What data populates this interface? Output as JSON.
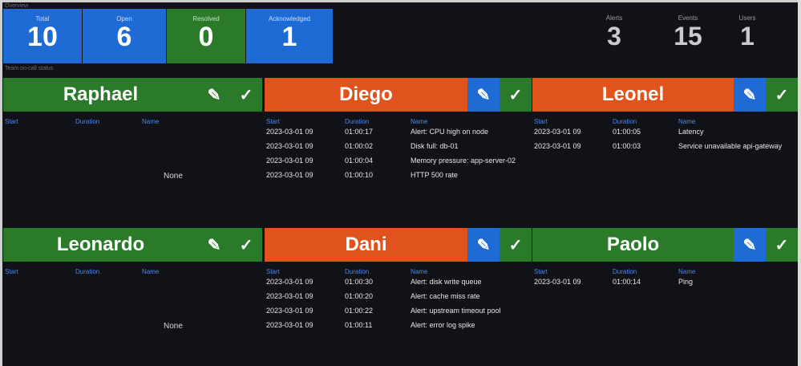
{
  "top": {
    "section_label": "Overview",
    "row_label": "Team on-call status",
    "stats": [
      {
        "label": "Total",
        "value": "10",
        "color": "#1f6bd6"
      },
      {
        "label": "Open",
        "value": "6",
        "color": "#1f6bd6"
      },
      {
        "label": "Resolved",
        "value": "0",
        "color": "#2a7a2a"
      },
      {
        "label": "Acknowledged",
        "value": "1",
        "color": "#1f6bd6"
      }
    ],
    "metrics": [
      {
        "label": "Alerts",
        "value": "3"
      },
      {
        "label": "Events",
        "value": "15"
      },
      {
        "label": "Users",
        "value": "1"
      }
    ]
  },
  "columns": [
    "Start",
    "Duration",
    "Name"
  ],
  "empty_label": "None",
  "panels": [
    {
      "name": "Raphael",
      "status_color": "#2a7a2a",
      "rows": []
    },
    {
      "name": "Diego",
      "status_color": "#e0531c",
      "rows": [
        [
          "2023-03-01 09",
          "01:00:17",
          "Alert: CPU high on node"
        ],
        [
          "2023-03-01 09",
          "01:00:02",
          "Disk full: db-01"
        ],
        [
          "2023-03-01 09",
          "01:00:04",
          "Memory pressure: app-server-02"
        ],
        [
          "2023-03-01 09",
          "01:00:10",
          "HTTP 500 rate"
        ]
      ]
    },
    {
      "name": "Leonel",
      "status_color": "#e0531c",
      "rows": [
        [
          "2023-03-01 09",
          "01:00:05",
          "Latency"
        ],
        [
          "2023-03-01 09",
          "01:00:03",
          "Service unavailable api-gateway"
        ]
      ]
    },
    {
      "name": "Leonardo",
      "status_color": "#2a7a2a",
      "rows": []
    },
    {
      "name": "Dani",
      "status_color": "#e0531c",
      "rows": [
        [
          "2023-03-01 09",
          "01:00:30",
          "Alert: disk write queue"
        ],
        [
          "2023-03-01 09",
          "01:00:20",
          "Alert: cache miss rate"
        ],
        [
          "2023-03-01 09",
          "01:00:22",
          "Alert: upstream timeout pool"
        ],
        [
          "2023-03-01 09",
          "01:00:11",
          "Alert: error log spike"
        ]
      ]
    },
    {
      "name": "Paolo",
      "status_color": "#2a7a2a",
      "rows": [
        [
          "2023-03-01 09",
          "01:00:14",
          "Ping"
        ]
      ]
    }
  ],
  "icons": {
    "edit": "✎",
    "ack": "✓"
  }
}
